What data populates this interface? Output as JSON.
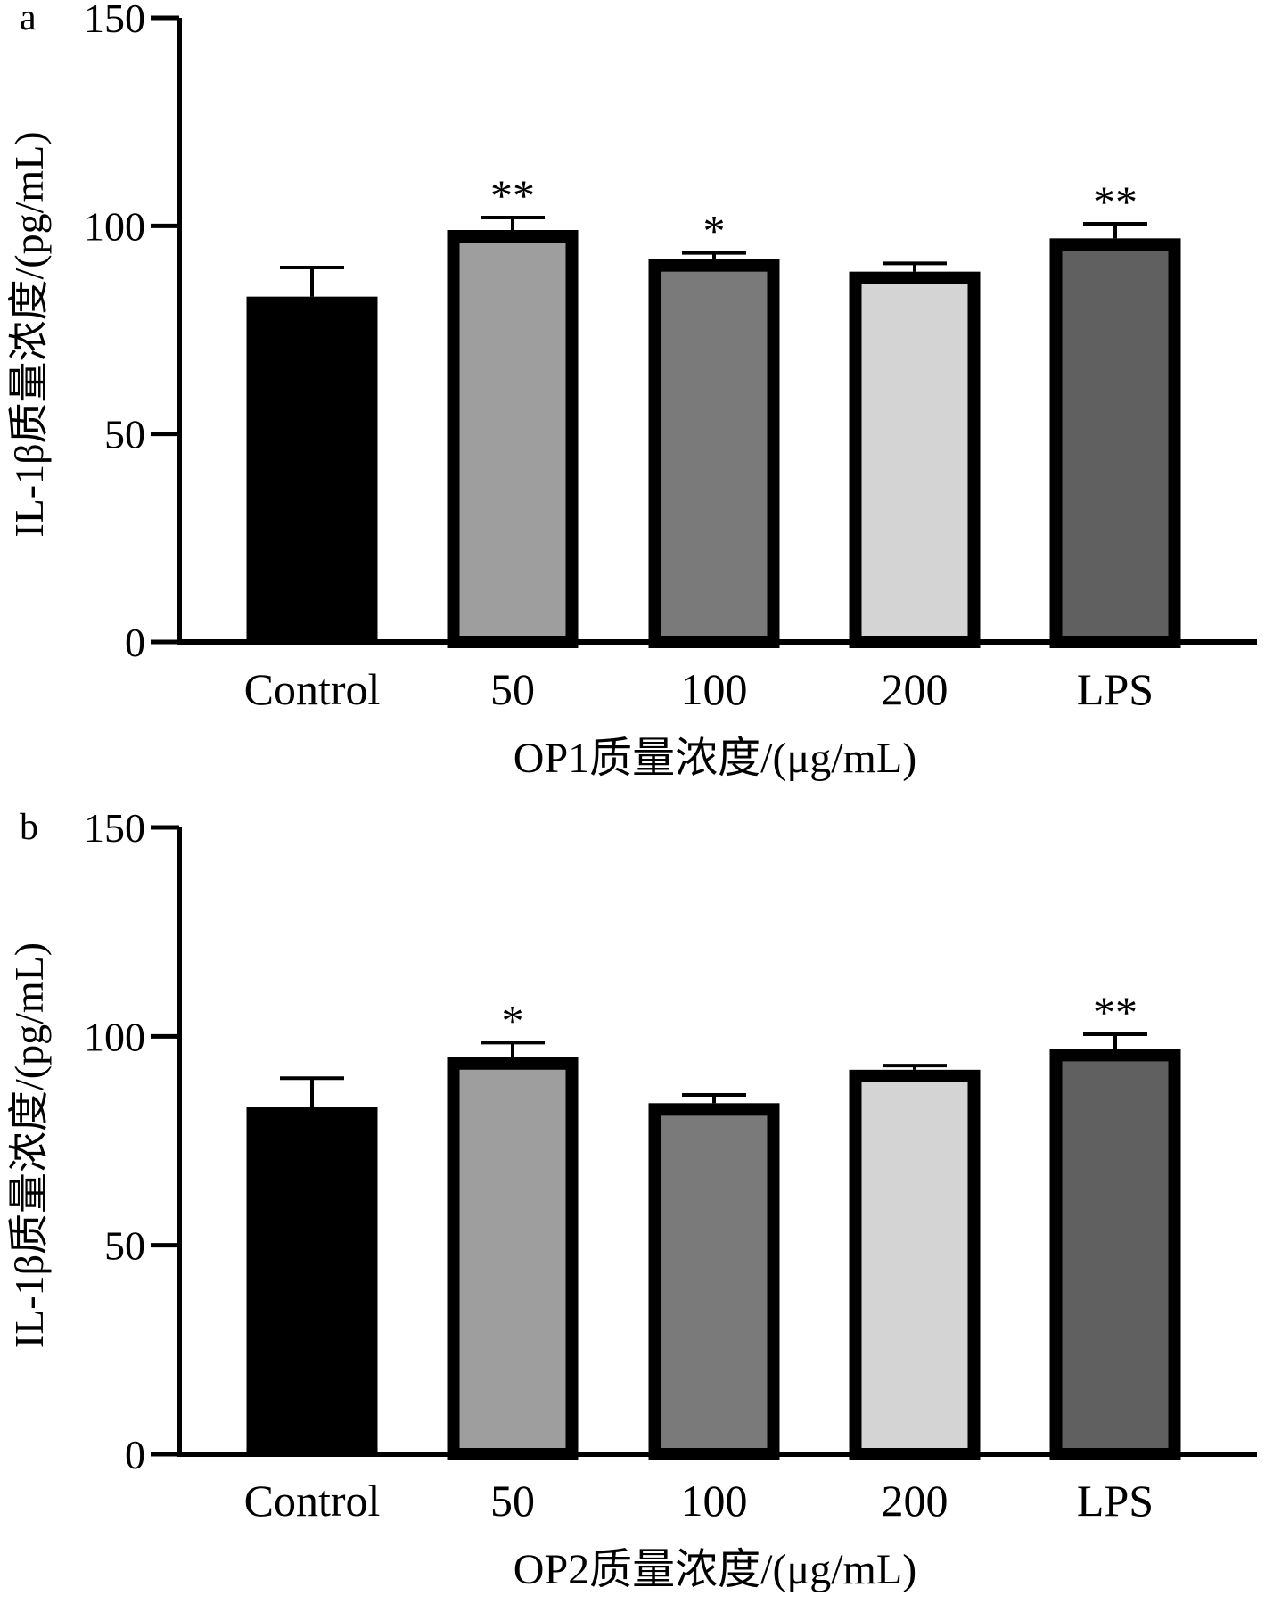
{
  "chart_data": [
    {
      "type": "bar",
      "panel_label": "a",
      "categories": [
        "Control",
        "50",
        "100",
        "200",
        "LPS"
      ],
      "values": [
        83,
        99,
        92,
        89,
        97
      ],
      "errors": [
        7,
        3,
        1.5,
        2,
        3.5
      ],
      "significance": [
        "",
        "**",
        "*",
        "",
        "**"
      ],
      "bar_colors": [
        "#000000",
        "#9e9e9e",
        "#7a7a7a",
        "#d4d4d4",
        "#606060"
      ],
      "xlabel": "OP1质量浓度/(μg/mL)",
      "ylabel": "IL-1β质量浓度/(pg/mL)",
      "ylim": [
        0,
        150
      ],
      "yticks": [
        0,
        50,
        100,
        150
      ],
      "grid": false
    },
    {
      "type": "bar",
      "panel_label": "b",
      "categories": [
        "Control",
        "50",
        "100",
        "200",
        "LPS"
      ],
      "values": [
        83,
        95,
        84,
        92,
        97
      ],
      "errors": [
        7,
        3.5,
        2,
        1,
        3.5
      ],
      "significance": [
        "",
        "*",
        "",
        "",
        "**"
      ],
      "bar_colors": [
        "#000000",
        "#9e9e9e",
        "#7a7a7a",
        "#d4d4d4",
        "#606060"
      ],
      "xlabel": "OP2质量浓度/(μg/mL)",
      "ylabel": "IL-1β质量浓度/(pg/mL)",
      "ylim": [
        0,
        150
      ],
      "yticks": [
        0,
        50,
        100,
        150
      ],
      "grid": false
    }
  ]
}
